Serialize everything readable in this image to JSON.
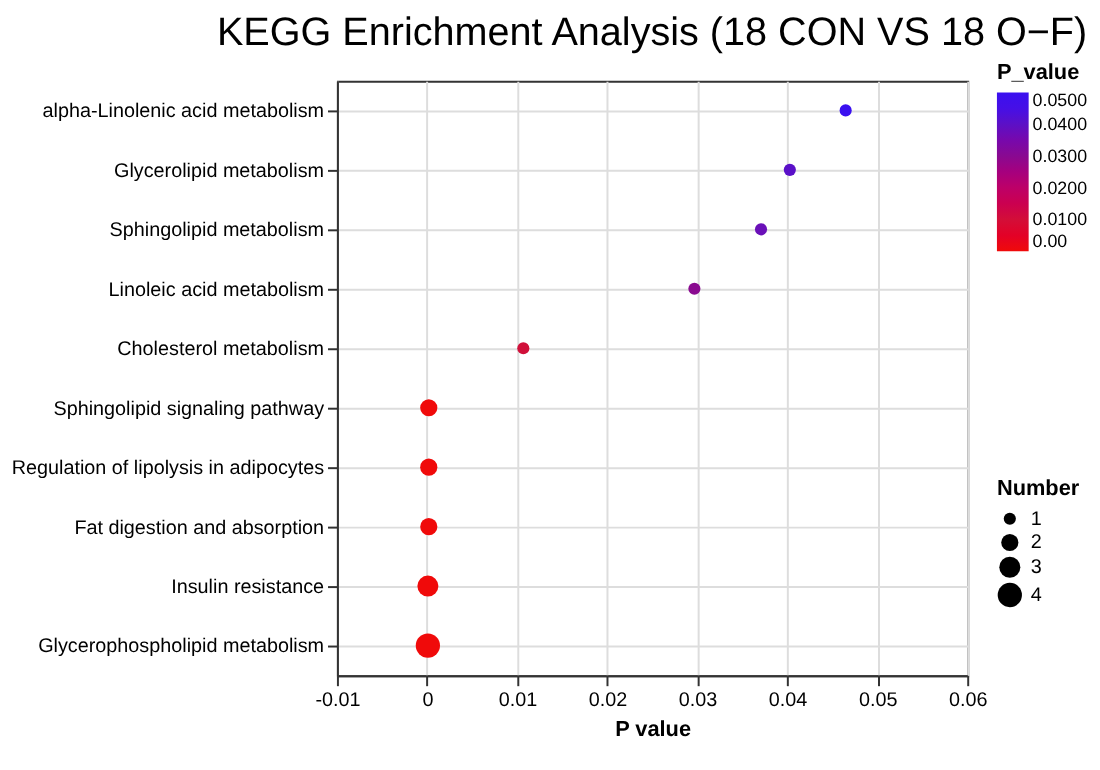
{
  "chart_data": {
    "type": "bubble",
    "title": "KEGG Enrichment Analysis (18 CON VS 18 O−F)",
    "xlabel": "P value",
    "legend_title": "Number",
    "clabel": "P_value",
    "categories": [
      "alpha-Linolenic acid metabolism",
      "Glycerolipid metabolism",
      "Sphingolipid metabolism",
      "Linoleic acid metabolism",
      "Cholesterol metabolism",
      "Sphingolipid signaling pathway",
      "Regulation of lipolysis in adipocytes",
      "Fat digestion and absorption",
      "Insulin resistance",
      "Glycerophospholipid metabolism"
    ],
    "values": [
      0.0465,
      0.0403,
      0.0371,
      0.0297,
      0.0107,
      0.0002,
      0.0002,
      0.0002,
      0.0001,
      0.0001
    ],
    "cvalues": [
      0.0465,
      0.0403,
      0.0371,
      0.0297,
      0.0107,
      0.0002,
      0.0002,
      0.0002,
      0.0001,
      0.0001
    ],
    "sizes": [
      1,
      1,
      1,
      1,
      1,
      2,
      2,
      2,
      3,
      4
    ],
    "size_legend": [
      1,
      2,
      3,
      4
    ],
    "colors": [
      "#3a10f0",
      "#5a10c8",
      "#6a10b8",
      "#8a0a90",
      "#d0103a",
      "#f00a0a",
      "#f00a0a",
      "#f00a0a",
      "#f00a0a",
      "#f00a0a"
    ],
    "xlim": [
      -0.01,
      0.06
    ],
    "xticks": [
      -0.01,
      0,
      0.01,
      0.02,
      0.03,
      0.04,
      0.05,
      0.06
    ],
    "clim": [
      0,
      0.05
    ],
    "cticks": [
      {
        "value": 0,
        "label": "0.00"
      },
      {
        "value": 0.01,
        "label": "0.0100"
      },
      {
        "value": 0.02,
        "label": "0.0200"
      },
      {
        "value": 0.03,
        "label": "0.0300"
      },
      {
        "value": 0.04,
        "label": "0.0400"
      },
      {
        "value": 0.05,
        "label": "0.0500"
      }
    ],
    "grid": true,
    "marker": "circle",
    "orientation": "horizontal"
  }
}
